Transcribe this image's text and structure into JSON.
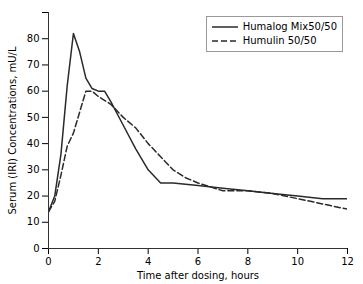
{
  "chart_data": {
    "type": "line",
    "title": "",
    "xlabel": "Time after dosing, hours",
    "ylabel": "Serum (IRI) Concentrations, mU/L",
    "xlim": [
      0,
      12
    ],
    "ylim": [
      0,
      90
    ],
    "xticks": [
      0,
      2,
      4,
      6,
      8,
      10,
      12
    ],
    "yticks": [
      0,
      10,
      20,
      30,
      40,
      50,
      60,
      70,
      80,
      {
        "value": 90,
        "label": ""
      }
    ],
    "grid": false,
    "legend": "upper right",
    "series": [
      {
        "name": "Humalog Mix50/50",
        "color": "#2a2a2a",
        "line_style": "solid",
        "x": [
          0,
          0.25,
          0.5,
          0.75,
          1.0,
          1.25,
          1.5,
          1.75,
          2.0,
          2.25,
          2.5,
          3.0,
          3.5,
          4.0,
          4.5,
          5.0,
          6.0,
          7.0,
          8.0,
          9.0,
          10.0,
          11.0,
          12.0
        ],
        "values": [
          14,
          20,
          36,
          62,
          82,
          75,
          65,
          61,
          60,
          60,
          56,
          47,
          38,
          30,
          25,
          25,
          24,
          23,
          22,
          21,
          20,
          19,
          19
        ]
      },
      {
        "name": "Humulin 50/50",
        "color": "#2a2a2a",
        "line_style": "dashed",
        "x": [
          0,
          0.25,
          0.5,
          0.75,
          1.0,
          1.25,
          1.5,
          1.75,
          2.0,
          2.5,
          3.0,
          3.5,
          4.0,
          4.5,
          5.0,
          5.5,
          6.0,
          7.0,
          8.0,
          9.0,
          10.0,
          11.0,
          12.0
        ],
        "values": [
          14,
          18,
          28,
          39,
          44,
          52,
          60,
          60,
          58,
          55,
          50,
          46,
          40,
          35,
          30,
          27,
          25,
          22,
          22,
          21,
          19,
          17,
          15
        ]
      }
    ]
  }
}
